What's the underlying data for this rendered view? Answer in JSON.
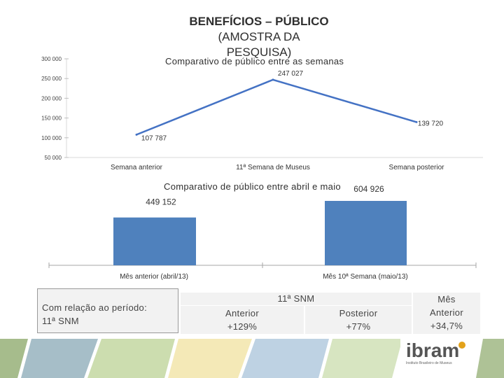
{
  "title": {
    "line1": "BENEFÍCIOS – PÚBLICO",
    "line2": "(AMOSTRA DA",
    "line3": "PESQUISA)"
  },
  "chart_data": [
    {
      "type": "line",
      "title": "Comparativo de público entre as semanas",
      "categories": [
        "Semana anterior",
        "11ª Semana de Museus",
        "Semana posterior"
      ],
      "values": [
        107787,
        247027,
        139720
      ],
      "data_labels": [
        "107 787",
        "247 027",
        "139 720"
      ],
      "yticks": [
        "300 000",
        "250 000",
        "200 000",
        "150 000",
        "100 000",
        "50 000"
      ],
      "ylim": [
        50000,
        300000
      ],
      "series_color": "#4472C4"
    },
    {
      "type": "bar",
      "title": "Comparativo de público entre abril e maio",
      "categories": [
        "Mês anterior (abril/13)",
        "Mês 10ª Semana (maio/13)"
      ],
      "values": [
        449152,
        604926
      ],
      "data_labels": [
        "449 152",
        "604 926"
      ],
      "series_color": "#4F81BD"
    }
  ],
  "summary": {
    "line1": "Com relação ao período:",
    "line2": "11ª SNM",
    "group_header": "11ª SNM",
    "cols": [
      {
        "label": "Anterior",
        "value": "+129%"
      },
      {
        "label": "Posterior",
        "value": "+77%"
      },
      {
        "label": "Mês Anterior",
        "value": "+34,7%"
      }
    ]
  },
  "footer": {
    "logo_text": "ibram",
    "logo_tagline": "Instituto Brasileiro de Museus"
  }
}
